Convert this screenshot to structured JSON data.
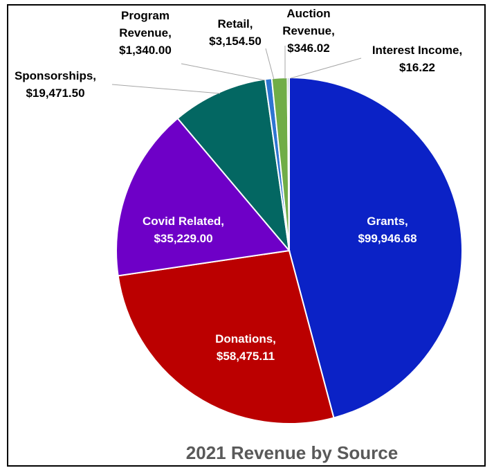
{
  "chart_data": {
    "type": "pie",
    "title": "2021 Revenue by Source",
    "slices": [
      {
        "category": "Grants",
        "value": 99946.68,
        "value_label": "$99,946.68",
        "color": "#0B22C6"
      },
      {
        "category": "Donations",
        "value": 58475.11,
        "value_label": "$58,475.11",
        "color": "#BB0000"
      },
      {
        "category": "Covid Related",
        "value": 35229.0,
        "value_label": "$35,229.00",
        "color": "#6E00C7"
      },
      {
        "category": "Sponsorships",
        "value": 19471.5,
        "value_label": "$19,471.50",
        "color": "#036762"
      },
      {
        "category": "Program Revenue",
        "value": 1340.0,
        "value_label": "$1,340.00",
        "color": "#2E75D1"
      },
      {
        "category": "Retail",
        "value": 3154.5,
        "value_label": "$3,154.50",
        "color": "#70AD47"
      },
      {
        "category": "Auction Revenue",
        "value": 346.02,
        "value_label": "$346.02",
        "color": "#1F4E79"
      },
      {
        "category": "Interest Income",
        "value": 16.22,
        "value_label": "$16.22",
        "color": "#A5A5A5"
      }
    ]
  }
}
